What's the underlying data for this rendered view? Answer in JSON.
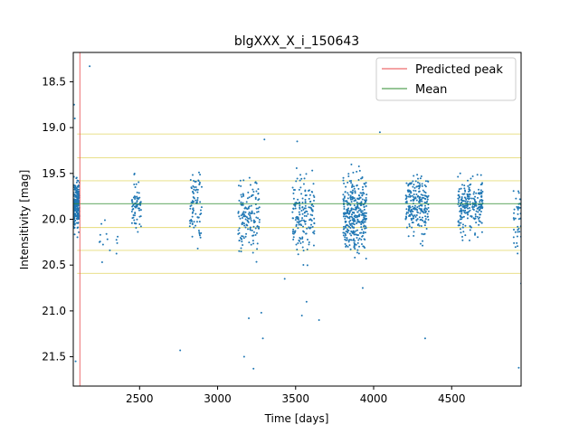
{
  "chart_data": {
    "type": "scatter",
    "title": "blgXXX_X_i_150643",
    "xlabel": "Time [days]",
    "ylabel": "Intensitivity [mag]",
    "xlim": [
      2075,
      4945
    ],
    "ylim": [
      21.82,
      18.18
    ],
    "y_inverted": true,
    "xticks": [
      2500,
      3000,
      3500,
      4000,
      4500
    ],
    "yticks": [
      18.5,
      19.0,
      19.5,
      20.0,
      20.5,
      21.0,
      21.5
    ],
    "predicted_peak_x": 2117,
    "mean_y": 19.83,
    "sigma_levels_y": [
      19.07,
      19.33,
      19.58,
      20.09,
      20.34,
      20.59
    ],
    "legend": {
      "position": "upper right",
      "entries": [
        {
          "label": "Predicted peak",
          "color": "#e8474a"
        },
        {
          "label": "Mean",
          "color": "#2e8b2e"
        }
      ]
    },
    "colors": {
      "points": "#1f77b4",
      "peak_line": "#e8474a",
      "mean_line": "#2e8b2e",
      "sigma_lines": "#e6dc7a"
    },
    "clusters": [
      {
        "center": 2090,
        "width": 25,
        "count": 320,
        "mean": 19.85,
        "spread": 0.18
      },
      {
        "center": 2300,
        "width": 60,
        "count": 14,
        "mean": 20.15,
        "spread": 0.18
      },
      {
        "center": 2480,
        "width": 30,
        "count": 70,
        "mean": 19.85,
        "spread": 0.2
      },
      {
        "center": 2860,
        "width": 40,
        "count": 80,
        "mean": 19.9,
        "spread": 0.25
      },
      {
        "center": 3200,
        "width": 70,
        "count": 150,
        "mean": 19.95,
        "spread": 0.3
      },
      {
        "center": 3550,
        "width": 70,
        "count": 170,
        "mean": 19.95,
        "spread": 0.28
      },
      {
        "center": 3880,
        "width": 75,
        "count": 360,
        "mean": 19.95,
        "spread": 0.3
      },
      {
        "center": 4280,
        "width": 75,
        "count": 230,
        "mean": 19.85,
        "spread": 0.22
      },
      {
        "center": 4620,
        "width": 80,
        "count": 230,
        "mean": 19.85,
        "spread": 0.22
      },
      {
        "center": 4920,
        "width": 25,
        "count": 40,
        "mean": 20.0,
        "spread": 0.25
      }
    ],
    "outliers": [
      {
        "x": 2080,
        "y": 18.75
      },
      {
        "x": 2085,
        "y": 18.9
      },
      {
        "x": 2180,
        "y": 18.33
      },
      {
        "x": 2090,
        "y": 21.55
      },
      {
        "x": 2760,
        "y": 21.43
      },
      {
        "x": 3170,
        "y": 21.5
      },
      {
        "x": 3200,
        "y": 21.08
      },
      {
        "x": 3230,
        "y": 21.63
      },
      {
        "x": 3290,
        "y": 21.3
      },
      {
        "x": 3280,
        "y": 21.02
      },
      {
        "x": 3430,
        "y": 20.65
      },
      {
        "x": 3540,
        "y": 21.05
      },
      {
        "x": 3650,
        "y": 21.1
      },
      {
        "x": 3570,
        "y": 20.9
      },
      {
        "x": 3300,
        "y": 19.13
      },
      {
        "x": 3510,
        "y": 19.15
      },
      {
        "x": 3930,
        "y": 20.75
      },
      {
        "x": 4040,
        "y": 19.05
      },
      {
        "x": 4330,
        "y": 21.3
      },
      {
        "x": 4930,
        "y": 21.62
      },
      {
        "x": 4945,
        "y": 20.7
      }
    ]
  }
}
